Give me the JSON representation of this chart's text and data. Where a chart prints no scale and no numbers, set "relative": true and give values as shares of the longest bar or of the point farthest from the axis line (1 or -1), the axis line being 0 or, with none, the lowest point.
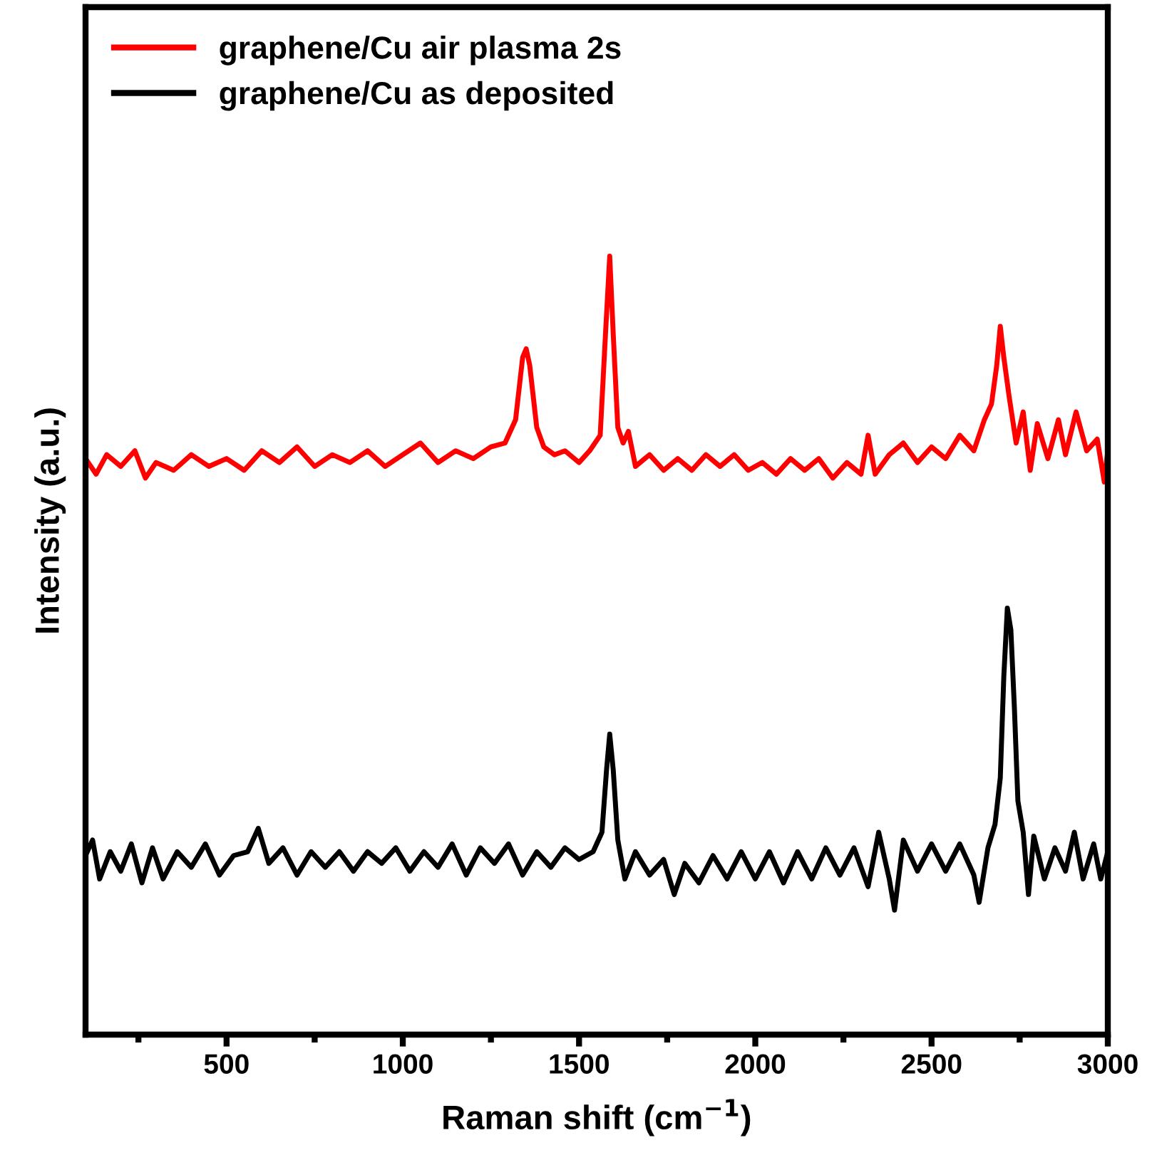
{
  "chart_data": {
    "type": "line",
    "relative": true,
    "xlabel": "Raman shift (cm$^{−1}$)",
    "ylabel": "Intensity (a.u.)",
    "xlim": [
      100,
      3000
    ],
    "xticks": [
      {
        "value": 250,
        "label": null
      },
      500,
      {
        "value": 750,
        "label": null
      },
      1000,
      {
        "value": 1250,
        "label": null
      },
      1500,
      {
        "value": 1750,
        "label": null
      },
      2000,
      {
        "value": 2250,
        "label": null
      },
      2500,
      {
        "value": 2750,
        "label": null
      },
      3000
    ],
    "tick_labels": "x",
    "grid": false,
    "legend": "top left",
    "line_style": "solid",
    "marker": "none",
    "series": [
      {
        "name": "graphene/Cu air plasma 2s",
        "color": "#ff0000",
        "x": [
          100,
          130,
          160,
          200,
          240,
          270,
          300,
          350,
          400,
          450,
          500,
          550,
          600,
          650,
          700,
          750,
          800,
          850,
          900,
          950,
          1000,
          1050,
          1100,
          1150,
          1200,
          1250,
          1290,
          1320,
          1340,
          1350,
          1360,
          1380,
          1400,
          1430,
          1460,
          1500,
          1530,
          1560,
          1575,
          1587,
          1597,
          1610,
          1625,
          1640,
          1660,
          1700,
          1740,
          1780,
          1820,
          1860,
          1900,
          1940,
          1980,
          2020,
          2060,
          2100,
          2140,
          2180,
          2220,
          2260,
          2300,
          2320,
          2340,
          2380,
          2420,
          2460,
          2500,
          2540,
          2580,
          2620,
          2650,
          2670,
          2685,
          2695,
          2705,
          2720,
          2740,
          2760,
          2780,
          2800,
          2830,
          2860,
          2880,
          2910,
          2940,
          2970,
          2990,
          3000
        ],
        "values": [
          0.74,
          0.72,
          0.745,
          0.73,
          0.75,
          0.715,
          0.735,
          0.725,
          0.745,
          0.73,
          0.74,
          0.725,
          0.75,
          0.735,
          0.755,
          0.73,
          0.745,
          0.735,
          0.75,
          0.73,
          0.745,
          0.76,
          0.735,
          0.75,
          0.74,
          0.755,
          0.76,
          0.79,
          0.87,
          0.881,
          0.86,
          0.78,
          0.755,
          0.745,
          0.75,
          0.735,
          0.75,
          0.77,
          0.9,
          1.0,
          0.9,
          0.78,
          0.76,
          0.775,
          0.73,
          0.745,
          0.725,
          0.74,
          0.725,
          0.745,
          0.73,
          0.745,
          0.725,
          0.735,
          0.72,
          0.74,
          0.725,
          0.74,
          0.715,
          0.735,
          0.72,
          0.77,
          0.72,
          0.745,
          0.76,
          0.735,
          0.755,
          0.74,
          0.77,
          0.75,
          0.79,
          0.81,
          0.86,
          0.91,
          0.87,
          0.82,
          0.76,
          0.8,
          0.725,
          0.785,
          0.74,
          0.79,
          0.745,
          0.8,
          0.75,
          0.765,
          0.71,
          0.75
        ]
      },
      {
        "name": "graphene/Cu as deposited",
        "color": "#000000",
        "x": [
          100,
          120,
          140,
          170,
          200,
          230,
          260,
          290,
          320,
          360,
          400,
          440,
          480,
          520,
          560,
          590,
          620,
          660,
          700,
          740,
          780,
          820,
          860,
          900,
          940,
          980,
          1020,
          1060,
          1100,
          1140,
          1180,
          1220,
          1260,
          1300,
          1340,
          1380,
          1420,
          1460,
          1500,
          1540,
          1565,
          1578,
          1587,
          1597,
          1610,
          1630,
          1660,
          1700,
          1740,
          1770,
          1800,
          1840,
          1880,
          1920,
          1960,
          2000,
          2040,
          2080,
          2120,
          2160,
          2200,
          2240,
          2280,
          2320,
          2350,
          2380,
          2395,
          2420,
          2460,
          2500,
          2540,
          2580,
          2620,
          2635,
          2660,
          2680,
          2695,
          2705,
          2715,
          2725,
          2735,
          2745,
          2760,
          2775,
          2790,
          2820,
          2850,
          2880,
          2905,
          2930,
          2960,
          2980,
          3000
        ],
        "values": [
          0.23,
          0.25,
          0.2,
          0.235,
          0.21,
          0.245,
          0.195,
          0.24,
          0.2,
          0.235,
          0.215,
          0.245,
          0.205,
          0.23,
          0.235,
          0.265,
          0.22,
          0.24,
          0.205,
          0.235,
          0.215,
          0.235,
          0.21,
          0.235,
          0.22,
          0.24,
          0.21,
          0.235,
          0.215,
          0.245,
          0.205,
          0.24,
          0.22,
          0.245,
          0.205,
          0.235,
          0.215,
          0.24,
          0.225,
          0.235,
          0.26,
          0.34,
          0.386,
          0.34,
          0.25,
          0.2,
          0.235,
          0.205,
          0.225,
          0.18,
          0.22,
          0.195,
          0.23,
          0.2,
          0.235,
          0.2,
          0.235,
          0.195,
          0.235,
          0.2,
          0.24,
          0.205,
          0.24,
          0.19,
          0.26,
          0.2,
          0.16,
          0.25,
          0.21,
          0.245,
          0.21,
          0.245,
          0.205,
          0.17,
          0.24,
          0.27,
          0.33,
          0.46,
          0.548,
          0.52,
          0.42,
          0.3,
          0.26,
          0.18,
          0.255,
          0.2,
          0.24,
          0.21,
          0.26,
          0.2,
          0.245,
          0.2,
          0.235
        ]
      }
    ]
  }
}
